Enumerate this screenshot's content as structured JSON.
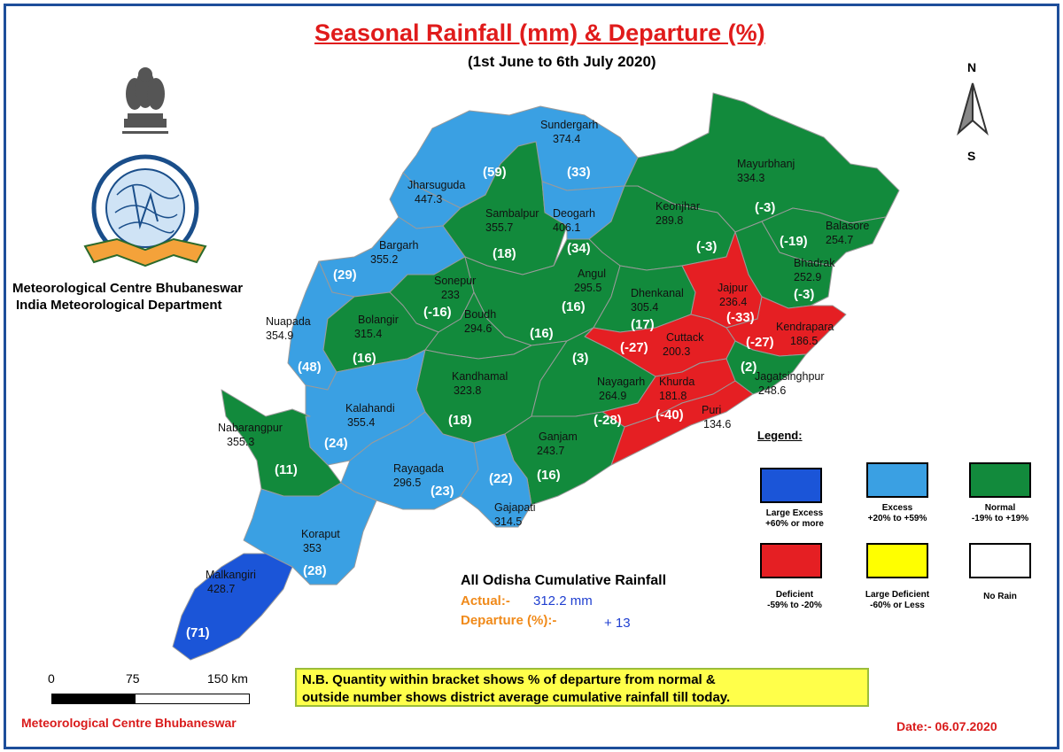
{
  "header": {
    "title": "Seasonal Rainfall (mm) & Departure (%)",
    "subtitle": "(1st June to 6th July 2020)"
  },
  "org": {
    "line1": "Meteorological Centre Bhubaneswar",
    "line2": "India Meteorological Department"
  },
  "compass": {
    "north": "N",
    "south": "S"
  },
  "colors": {
    "large_excess": "#1b55d8",
    "excess": "#3aa0e3",
    "normal": "#128a3c",
    "deficient": "#e51f23",
    "large_deficient": "#ffff00",
    "no_rain": "#ffffff",
    "title_red": "#e01b1b"
  },
  "districts": [
    {
      "name": "Sundergarh",
      "rainfall": "374.4",
      "departure": "(33)",
      "category": "excess"
    },
    {
      "name": "Jharsuguda",
      "rainfall": "447.3",
      "departure": "(59)",
      "category": "excess"
    },
    {
      "name": "Sambalpur",
      "rainfall": "355.7",
      "departure": "(18)",
      "category": "normal"
    },
    {
      "name": "Deogarh",
      "rainfall": "406.1",
      "departure": "(34)",
      "category": "excess"
    },
    {
      "name": "Mayurbhanj",
      "rainfall": "334.3",
      "departure": "(-3)",
      "category": "normal"
    },
    {
      "name": "Keonjhar",
      "rainfall": "289.8",
      "departure": "(-3)",
      "category": "normal"
    },
    {
      "name": "Balasore",
      "rainfall": "254.7",
      "departure": "(-19)",
      "category": "normal"
    },
    {
      "name": "Bhadrak",
      "rainfall": "252.9",
      "departure": "(-3)",
      "category": "normal"
    },
    {
      "name": "Bargarh",
      "rainfall": "355.2",
      "departure": "(29)",
      "category": "excess"
    },
    {
      "name": "Sonepur",
      "rainfall": "233",
      "departure": "(-16)",
      "category": "normal"
    },
    {
      "name": "Angul",
      "rainfall": "295.5",
      "departure": "(16)",
      "category": "normal"
    },
    {
      "name": "Dhenkanal",
      "rainfall": "305.4",
      "departure": "(17)",
      "category": "normal"
    },
    {
      "name": "Jajpur",
      "rainfall": "236.4",
      "departure": "(-33)",
      "category": "deficient"
    },
    {
      "name": "Kendrapara",
      "rainfall": "186.5",
      "departure": "(-27)",
      "category": "deficient"
    },
    {
      "name": "Nuapada",
      "rainfall": "354.9",
      "departure": "(48)",
      "category": "excess"
    },
    {
      "name": "Bolangir",
      "rainfall": "315.4",
      "departure": "(16)",
      "category": "normal"
    },
    {
      "name": "Boudh",
      "rainfall": "294.6",
      "departure": "(16)",
      "category": "normal"
    },
    {
      "name": "Cuttack",
      "rainfall": "200.3",
      "departure": "(-27)",
      "category": "deficient"
    },
    {
      "name": "Jagatsinghpur",
      "rainfall": "248.6",
      "departure": "(2)",
      "category": "normal"
    },
    {
      "name": "Kandhamal",
      "rainfall": "323.8",
      "departure": "(18)",
      "category": "normal"
    },
    {
      "name": "Nayagarh",
      "rainfall": "264.9",
      "departure": "(3)",
      "category": "normal"
    },
    {
      "name": "Khurda",
      "rainfall": "181.8",
      "departure": "(-28)",
      "category": "deficient"
    },
    {
      "name": "Puri",
      "rainfall": "134.6",
      "departure": "(-40)",
      "category": "deficient"
    },
    {
      "name": "Kalahandi",
      "rainfall": "355.4",
      "departure": "(24)",
      "category": "excess"
    },
    {
      "name": "Nabarangpur",
      "rainfall": "355.3",
      "departure": "(11)",
      "category": "normal"
    },
    {
      "name": "Ganjam",
      "rainfall": "243.7",
      "departure": "(16)",
      "category": "normal"
    },
    {
      "name": "Rayagada",
      "rainfall": "296.5",
      "departure": "(23)",
      "category": "excess"
    },
    {
      "name": "Gajapati",
      "rainfall": "314.5",
      "departure": "(22)",
      "category": "excess"
    },
    {
      "name": "Koraput",
      "rainfall": "353",
      "departure": "(28)",
      "category": "excess"
    },
    {
      "name": "Malkangiri",
      "rainfall": "428.7",
      "departure": "(71)",
      "category": "large_excess"
    }
  ],
  "legend": {
    "title": "Legend:",
    "items": [
      {
        "line1": "Large Excess",
        "line2": "+60% or more",
        "category": "large_excess"
      },
      {
        "line1": "Excess",
        "line2": "+20% to +59%",
        "category": "excess"
      },
      {
        "line1": "Normal",
        "line2": "-19% to +19%",
        "category": "normal"
      },
      {
        "line1": "Deficient",
        "line2": "-59% to -20%",
        "category": "deficient"
      },
      {
        "line1": "Large Deficient",
        "line2": "-60% or Less",
        "category": "large_deficient"
      },
      {
        "line1": "No Rain",
        "line2": "",
        "category": "no_rain"
      }
    ]
  },
  "cumulative": {
    "title": "All Odisha Cumulative Rainfall",
    "actual_label": "Actual:-",
    "actual_value": "312.2 mm",
    "departure_label": "Departure (%):-",
    "departure_value": "+ 13"
  },
  "scale": {
    "labels": [
      "0",
      "75",
      "150 km"
    ]
  },
  "note": {
    "line1": "N.B. Quantity within bracket shows % of departure from normal &",
    "line2": "outside number shows district average cumulative rainfall till today."
  },
  "footer": {
    "left": "Meteorological Centre Bhubaneswar",
    "date": "Date:- 06.07.2020"
  }
}
